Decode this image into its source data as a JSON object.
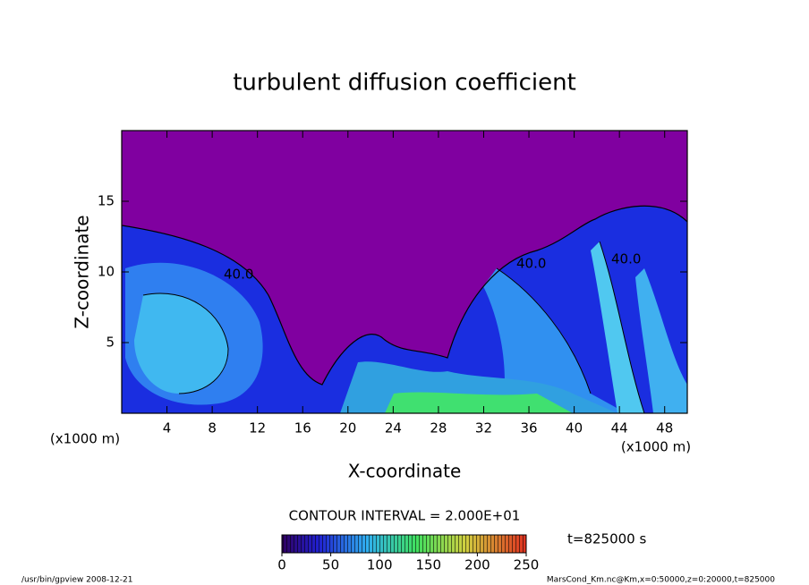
{
  "chart_data": {
    "type": "contour",
    "title": "turbulent diffusion coefficient",
    "xlabel": "X-coordinate",
    "ylabel": "Z-coordinate",
    "x_unit_labels": [
      "(x1000 m)",
      "(x1000 m)"
    ],
    "xlim": [
      0,
      50
    ],
    "ylim": [
      0,
      20
    ],
    "xticks": [
      4,
      8,
      12,
      16,
      20,
      24,
      28,
      32,
      36,
      40,
      44,
      48
    ],
    "yticks": [
      5,
      10,
      15
    ],
    "contour_labels": [
      "40.0",
      "40.0",
      "40.0"
    ],
    "contour_interval": "CONTOUR INTERVAL = 2.000E+01",
    "time_label": "t=825000 s",
    "colorbar": {
      "clim": [
        0,
        250
      ],
      "ticks": [
        0,
        50,
        100,
        150,
        200,
        250
      ]
    },
    "footer_left": "/usr/bin/gpview   2008-12-21",
    "footer_right": "MarsCond_Km.nc@Km,x=0:50000,z=0:20000,t=825000"
  }
}
